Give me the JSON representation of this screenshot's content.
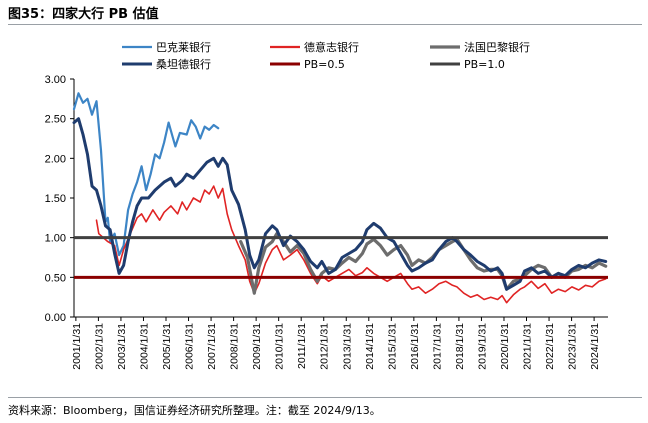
{
  "figure": {
    "title": "图35：四家大行 PB 估值",
    "source": "资料来源：Bloomberg，国信证券经济研究所整理。注：截至 2024/9/13。"
  },
  "chart_data": {
    "type": "line",
    "title": "",
    "xlabel": "",
    "ylabel": "",
    "ylim": [
      0.0,
      3.0
    ],
    "yticks": [
      "3.00",
      "2.50",
      "2.00",
      "1.50",
      "1.00",
      "0.50",
      "0.00"
    ],
    "xlim": [
      2001.0,
      2024.7
    ],
    "xtick_labels": [
      "2001/1/31",
      "2002/1/31",
      "2003/1/31",
      "2004/1/31",
      "2005/1/31",
      "2006/1/31",
      "2007/1/31",
      "2008/1/31",
      "2009/1/31",
      "2010/1/31",
      "2011/1/31",
      "2012/1/31",
      "2013/1/31",
      "2014/1/31",
      "2015/1/31",
      "2016/1/31",
      "2017/1/31",
      "2018/1/31",
      "2019/1/31",
      "2020/1/31",
      "2021/1/31",
      "2022/1/31",
      "2023/1/31",
      "2024/1/31"
    ],
    "legend_placement": "top",
    "grid": false,
    "series": [
      {
        "name": "巴克莱银行",
        "color": "#3d85c6",
        "width": 2.2,
        "points": [
          [
            2001.0,
            2.62
          ],
          [
            2001.2,
            2.82
          ],
          [
            2001.4,
            2.7
          ],
          [
            2001.6,
            2.75
          ],
          [
            2001.8,
            2.55
          ],
          [
            2002.0,
            2.72
          ],
          [
            2002.2,
            2.1
          ],
          [
            2002.4,
            1.2
          ],
          [
            2002.5,
            1.25
          ],
          [
            2002.6,
            0.95
          ],
          [
            2002.8,
            1.05
          ],
          [
            2003.0,
            0.78
          ],
          [
            2003.2,
            0.9
          ],
          [
            2003.4,
            1.35
          ],
          [
            2003.6,
            1.55
          ],
          [
            2003.8,
            1.7
          ],
          [
            2004.0,
            1.9
          ],
          [
            2004.2,
            1.6
          ],
          [
            2004.4,
            1.8
          ],
          [
            2004.6,
            2.05
          ],
          [
            2004.8,
            2.0
          ],
          [
            2005.0,
            2.2
          ],
          [
            2005.2,
            2.45
          ],
          [
            2005.4,
            2.25
          ],
          [
            2005.5,
            2.15
          ],
          [
            2005.7,
            2.32
          ],
          [
            2006.0,
            2.3
          ],
          [
            2006.2,
            2.48
          ],
          [
            2006.4,
            2.4
          ],
          [
            2006.6,
            2.25
          ],
          [
            2006.8,
            2.4
          ],
          [
            2007.0,
            2.36
          ],
          [
            2007.2,
            2.42
          ],
          [
            2007.4,
            2.38
          ]
        ]
      },
      {
        "name": "德意志银行",
        "color": "#e02424",
        "width": 1.6,
        "points": [
          [
            2002.0,
            1.22
          ],
          [
            2002.1,
            1.05
          ],
          [
            2002.3,
            1.0
          ],
          [
            2002.5,
            0.95
          ],
          [
            2002.8,
            0.9
          ],
          [
            2003.0,
            0.65
          ],
          [
            2003.2,
            0.85
          ],
          [
            2003.5,
            1.05
          ],
          [
            2003.8,
            1.25
          ],
          [
            2004.0,
            1.3
          ],
          [
            2004.2,
            1.2
          ],
          [
            2004.5,
            1.35
          ],
          [
            2004.8,
            1.22
          ],
          [
            2005.0,
            1.32
          ],
          [
            2005.3,
            1.4
          ],
          [
            2005.6,
            1.3
          ],
          [
            2005.8,
            1.45
          ],
          [
            2006.0,
            1.35
          ],
          [
            2006.3,
            1.5
          ],
          [
            2006.6,
            1.45
          ],
          [
            2006.8,
            1.6
          ],
          [
            2007.0,
            1.55
          ],
          [
            2007.2,
            1.65
          ],
          [
            2007.4,
            1.5
          ],
          [
            2007.6,
            1.62
          ],
          [
            2007.8,
            1.3
          ],
          [
            2008.0,
            1.1
          ],
          [
            2008.3,
            0.9
          ],
          [
            2008.6,
            0.72
          ],
          [
            2008.8,
            0.45
          ],
          [
            2009.0,
            0.3
          ],
          [
            2009.2,
            0.42
          ],
          [
            2009.5,
            0.68
          ],
          [
            2009.8,
            0.85
          ],
          [
            2010.0,
            0.9
          ],
          [
            2010.3,
            0.72
          ],
          [
            2010.6,
            0.78
          ],
          [
            2010.9,
            0.85
          ],
          [
            2011.2,
            0.72
          ],
          [
            2011.5,
            0.55
          ],
          [
            2011.8,
            0.42
          ],
          [
            2012.0,
            0.52
          ],
          [
            2012.3,
            0.45
          ],
          [
            2012.6,
            0.5
          ],
          [
            2012.9,
            0.55
          ],
          [
            2013.2,
            0.6
          ],
          [
            2013.5,
            0.52
          ],
          [
            2013.8,
            0.56
          ],
          [
            2014.0,
            0.62
          ],
          [
            2014.3,
            0.55
          ],
          [
            2014.6,
            0.5
          ],
          [
            2014.9,
            0.45
          ],
          [
            2015.2,
            0.5
          ],
          [
            2015.5,
            0.55
          ],
          [
            2015.8,
            0.42
          ],
          [
            2016.0,
            0.35
          ],
          [
            2016.3,
            0.38
          ],
          [
            2016.6,
            0.3
          ],
          [
            2016.9,
            0.35
          ],
          [
            2017.2,
            0.42
          ],
          [
            2017.5,
            0.45
          ],
          [
            2017.8,
            0.4
          ],
          [
            2018.0,
            0.38
          ],
          [
            2018.3,
            0.3
          ],
          [
            2018.6,
            0.25
          ],
          [
            2018.9,
            0.28
          ],
          [
            2019.2,
            0.22
          ],
          [
            2019.5,
            0.25
          ],
          [
            2019.8,
            0.22
          ],
          [
            2020.0,
            0.27
          ],
          [
            2020.2,
            0.18
          ],
          [
            2020.5,
            0.28
          ],
          [
            2020.8,
            0.35
          ],
          [
            2021.0,
            0.38
          ],
          [
            2021.3,
            0.45
          ],
          [
            2021.6,
            0.36
          ],
          [
            2021.9,
            0.42
          ],
          [
            2022.2,
            0.3
          ],
          [
            2022.5,
            0.35
          ],
          [
            2022.8,
            0.32
          ],
          [
            2023.1,
            0.38
          ],
          [
            2023.4,
            0.34
          ],
          [
            2023.7,
            0.4
          ],
          [
            2024.0,
            0.38
          ],
          [
            2024.3,
            0.45
          ],
          [
            2024.6,
            0.48
          ]
        ]
      },
      {
        "name": "法国巴黎银行",
        "color": "#6d6d6d",
        "width": 3.2,
        "points": [
          [
            2008.4,
            0.95
          ],
          [
            2008.7,
            0.75
          ],
          [
            2008.9,
            0.45
          ],
          [
            2009.0,
            0.3
          ],
          [
            2009.2,
            0.62
          ],
          [
            2009.5,
            0.88
          ],
          [
            2009.8,
            0.95
          ],
          [
            2010.0,
            1.05
          ],
          [
            2010.3,
            0.95
          ],
          [
            2010.6,
            0.82
          ],
          [
            2010.9,
            0.9
          ],
          [
            2011.2,
            0.8
          ],
          [
            2011.5,
            0.6
          ],
          [
            2011.8,
            0.45
          ],
          [
            2012.0,
            0.55
          ],
          [
            2012.3,
            0.62
          ],
          [
            2012.6,
            0.6
          ],
          [
            2012.9,
            0.68
          ],
          [
            2013.2,
            0.75
          ],
          [
            2013.5,
            0.7
          ],
          [
            2013.8,
            0.8
          ],
          [
            2014.0,
            0.92
          ],
          [
            2014.3,
            0.98
          ],
          [
            2014.6,
            0.9
          ],
          [
            2014.9,
            0.78
          ],
          [
            2015.2,
            0.85
          ],
          [
            2015.5,
            0.9
          ],
          [
            2015.8,
            0.78
          ],
          [
            2016.0,
            0.65
          ],
          [
            2016.3,
            0.72
          ],
          [
            2016.6,
            0.68
          ],
          [
            2016.9,
            0.75
          ],
          [
            2017.2,
            0.85
          ],
          [
            2017.5,
            0.9
          ],
          [
            2017.8,
            0.95
          ],
          [
            2018.0,
            0.98
          ],
          [
            2018.3,
            0.85
          ],
          [
            2018.6,
            0.72
          ],
          [
            2018.9,
            0.62
          ],
          [
            2019.2,
            0.58
          ],
          [
            2019.5,
            0.6
          ],
          [
            2019.8,
            0.6
          ],
          [
            2020.0,
            0.52
          ],
          [
            2020.2,
            0.35
          ],
          [
            2020.5,
            0.45
          ],
          [
            2020.8,
            0.48
          ],
          [
            2021.0,
            0.52
          ],
          [
            2021.3,
            0.6
          ],
          [
            2021.6,
            0.65
          ],
          [
            2021.9,
            0.62
          ],
          [
            2022.2,
            0.5
          ],
          [
            2022.5,
            0.55
          ],
          [
            2022.8,
            0.5
          ],
          [
            2023.1,
            0.58
          ],
          [
            2023.4,
            0.6
          ],
          [
            2023.7,
            0.65
          ],
          [
            2024.0,
            0.62
          ],
          [
            2024.3,
            0.68
          ],
          [
            2024.6,
            0.64
          ]
        ]
      },
      {
        "name": "桑坦德银行",
        "color": "#1f3c6e",
        "width": 3.0,
        "points": [
          [
            2001.0,
            2.45
          ],
          [
            2001.2,
            2.5
          ],
          [
            2001.4,
            2.3
          ],
          [
            2001.6,
            2.05
          ],
          [
            2001.8,
            1.65
          ],
          [
            2002.0,
            1.6
          ],
          [
            2002.2,
            1.4
          ],
          [
            2002.4,
            1.15
          ],
          [
            2002.6,
            1.1
          ],
          [
            2002.8,
            0.8
          ],
          [
            2003.0,
            0.55
          ],
          [
            2003.2,
            0.65
          ],
          [
            2003.4,
            0.95
          ],
          [
            2003.6,
            1.2
          ],
          [
            2003.8,
            1.4
          ],
          [
            2004.0,
            1.5
          ],
          [
            2004.3,
            1.5
          ],
          [
            2004.6,
            1.6
          ],
          [
            2004.8,
            1.65
          ],
          [
            2005.0,
            1.7
          ],
          [
            2005.3,
            1.75
          ],
          [
            2005.5,
            1.65
          ],
          [
            2005.8,
            1.72
          ],
          [
            2006.0,
            1.8
          ],
          [
            2006.3,
            1.75
          ],
          [
            2006.6,
            1.85
          ],
          [
            2006.9,
            1.95
          ],
          [
            2007.2,
            2.0
          ],
          [
            2007.4,
            1.9
          ],
          [
            2007.6,
            2.0
          ],
          [
            2007.8,
            1.92
          ],
          [
            2008.0,
            1.6
          ],
          [
            2008.3,
            1.42
          ],
          [
            2008.6,
            1.1
          ],
          [
            2008.8,
            0.78
          ],
          [
            2009.0,
            0.62
          ],
          [
            2009.2,
            0.72
          ],
          [
            2009.5,
            1.05
          ],
          [
            2009.8,
            1.15
          ],
          [
            2010.0,
            1.1
          ],
          [
            2010.3,
            0.9
          ],
          [
            2010.6,
            1.02
          ],
          [
            2010.9,
            0.95
          ],
          [
            2011.2,
            0.85
          ],
          [
            2011.5,
            0.7
          ],
          [
            2011.8,
            0.62
          ],
          [
            2012.0,
            0.7
          ],
          [
            2012.3,
            0.55
          ],
          [
            2012.6,
            0.6
          ],
          [
            2012.9,
            0.75
          ],
          [
            2013.2,
            0.8
          ],
          [
            2013.5,
            0.85
          ],
          [
            2013.8,
            0.95
          ],
          [
            2014.0,
            1.1
          ],
          [
            2014.3,
            1.18
          ],
          [
            2014.6,
            1.12
          ],
          [
            2014.9,
            1.0
          ],
          [
            2015.2,
            0.95
          ],
          [
            2015.5,
            0.8
          ],
          [
            2015.8,
            0.65
          ],
          [
            2016.0,
            0.58
          ],
          [
            2016.3,
            0.62
          ],
          [
            2016.6,
            0.68
          ],
          [
            2016.9,
            0.72
          ],
          [
            2017.2,
            0.85
          ],
          [
            2017.5,
            0.95
          ],
          [
            2017.8,
            1.0
          ],
          [
            2018.0,
            0.95
          ],
          [
            2018.3,
            0.85
          ],
          [
            2018.6,
            0.78
          ],
          [
            2018.9,
            0.7
          ],
          [
            2019.2,
            0.65
          ],
          [
            2019.5,
            0.58
          ],
          [
            2019.8,
            0.62
          ],
          [
            2020.0,
            0.55
          ],
          [
            2020.2,
            0.35
          ],
          [
            2020.5,
            0.4
          ],
          [
            2020.8,
            0.45
          ],
          [
            2021.0,
            0.58
          ],
          [
            2021.3,
            0.62
          ],
          [
            2021.6,
            0.55
          ],
          [
            2021.9,
            0.58
          ],
          [
            2022.2,
            0.5
          ],
          [
            2022.5,
            0.55
          ],
          [
            2022.8,
            0.52
          ],
          [
            2023.1,
            0.6
          ],
          [
            2023.4,
            0.65
          ],
          [
            2023.7,
            0.62
          ],
          [
            2024.0,
            0.68
          ],
          [
            2024.3,
            0.72
          ],
          [
            2024.6,
            0.7
          ]
        ]
      },
      {
        "name": "PB=0.5",
        "color": "#8b0000",
        "width": 3.0,
        "constant": 0.5
      },
      {
        "name": "PB=1.0",
        "color": "#404040",
        "width": 3.0,
        "constant": 1.0
      }
    ]
  }
}
